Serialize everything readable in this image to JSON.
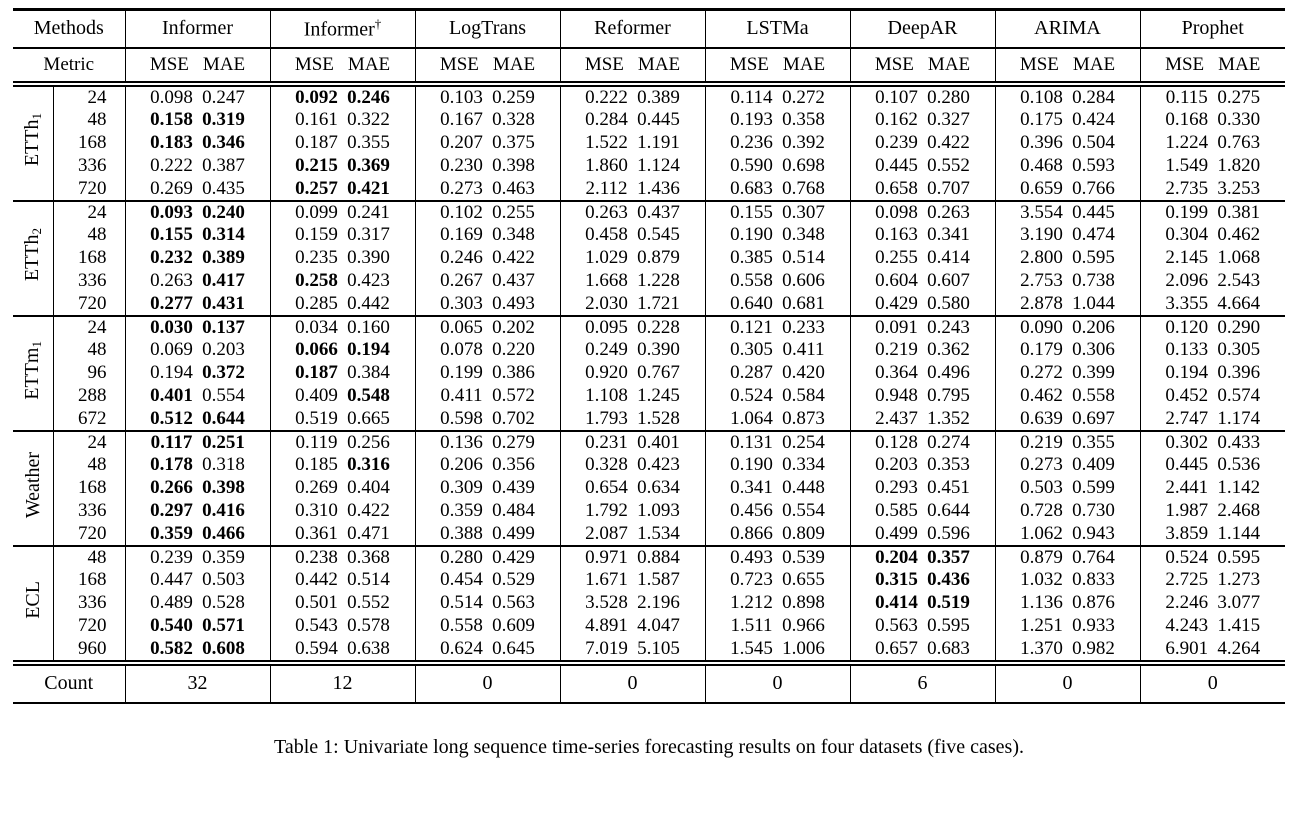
{
  "caption": "Table 1: Univariate long sequence time-series forecasting results on four datasets (five cases).",
  "table": {
    "corner_labels": {
      "methods": "Methods",
      "metric": "Metric",
      "count": "Count"
    },
    "metrics": [
      "MSE",
      "MAE"
    ],
    "methods": [
      {
        "name": "Informer",
        "sup": ""
      },
      {
        "name": "Informer",
        "sup": "†"
      },
      {
        "name": "LogTrans",
        "sup": ""
      },
      {
        "name": "Reformer",
        "sup": ""
      },
      {
        "name": "LSTMa",
        "sup": ""
      },
      {
        "name": "DeepAR",
        "sup": ""
      },
      {
        "name": "ARIMA",
        "sup": ""
      },
      {
        "name": "Prophet",
        "sup": ""
      }
    ],
    "counts": [
      "32",
      "12",
      "0",
      "0",
      "0",
      "6",
      "0",
      "0"
    ],
    "groups": [
      {
        "label": "ETTh",
        "label_sub": "1",
        "rows": [
          {
            "horizon": "24",
            "values": [
              "0.098",
              "0.247",
              "0.092",
              "0.246",
              "0.103",
              "0.259",
              "0.222",
              "0.389",
              "0.114",
              "0.272",
              "0.107",
              "0.280",
              "0.108",
              "0.284",
              "0.115",
              "0.275"
            ],
            "bold": [
              2,
              3
            ]
          },
          {
            "horizon": "48",
            "values": [
              "0.158",
              "0.319",
              "0.161",
              "0.322",
              "0.167",
              "0.328",
              "0.284",
              "0.445",
              "0.193",
              "0.358",
              "0.162",
              "0.327",
              "0.175",
              "0.424",
              "0.168",
              "0.330"
            ],
            "bold": [
              0,
              1
            ]
          },
          {
            "horizon": "168",
            "values": [
              "0.183",
              "0.346",
              "0.187",
              "0.355",
              "0.207",
              "0.375",
              "1.522",
              "1.191",
              "0.236",
              "0.392",
              "0.239",
              "0.422",
              "0.396",
              "0.504",
              "1.224",
              "0.763"
            ],
            "bold": [
              0,
              1
            ]
          },
          {
            "horizon": "336",
            "values": [
              "0.222",
              "0.387",
              "0.215",
              "0.369",
              "0.230",
              "0.398",
              "1.860",
              "1.124",
              "0.590",
              "0.698",
              "0.445",
              "0.552",
              "0.468",
              "0.593",
              "1.549",
              "1.820"
            ],
            "bold": [
              2,
              3
            ]
          },
          {
            "horizon": "720",
            "values": [
              "0.269",
              "0.435",
              "0.257",
              "0.421",
              "0.273",
              "0.463",
              "2.112",
              "1.436",
              "0.683",
              "0.768",
              "0.658",
              "0.707",
              "0.659",
              "0.766",
              "2.735",
              "3.253"
            ],
            "bold": [
              2,
              3
            ]
          }
        ]
      },
      {
        "label": "ETTh",
        "label_sub": "2",
        "rows": [
          {
            "horizon": "24",
            "values": [
              "0.093",
              "0.240",
              "0.099",
              "0.241",
              "0.102",
              "0.255",
              "0.263",
              "0.437",
              "0.155",
              "0.307",
              "0.098",
              "0.263",
              "3.554",
              "0.445",
              "0.199",
              "0.381"
            ],
            "bold": [
              0,
              1
            ]
          },
          {
            "horizon": "48",
            "values": [
              "0.155",
              "0.314",
              "0.159",
              "0.317",
              "0.169",
              "0.348",
              "0.458",
              "0.545",
              "0.190",
              "0.348",
              "0.163",
              "0.341",
              "3.190",
              "0.474",
              "0.304",
              "0.462"
            ],
            "bold": [
              0,
              1
            ]
          },
          {
            "horizon": "168",
            "values": [
              "0.232",
              "0.389",
              "0.235",
              "0.390",
              "0.246",
              "0.422",
              "1.029",
              "0.879",
              "0.385",
              "0.514",
              "0.255",
              "0.414",
              "2.800",
              "0.595",
              "2.145",
              "1.068"
            ],
            "bold": [
              0,
              1
            ]
          },
          {
            "horizon": "336",
            "values": [
              "0.263",
              "0.417",
              "0.258",
              "0.423",
              "0.267",
              "0.437",
              "1.668",
              "1.228",
              "0.558",
              "0.606",
              "0.604",
              "0.607",
              "2.753",
              "0.738",
              "2.096",
              "2.543"
            ],
            "bold": [
              1,
              2
            ]
          },
          {
            "horizon": "720",
            "values": [
              "0.277",
              "0.431",
              "0.285",
              "0.442",
              "0.303",
              "0.493",
              "2.030",
              "1.721",
              "0.640",
              "0.681",
              "0.429",
              "0.580",
              "2.878",
              "1.044",
              "3.355",
              "4.664"
            ],
            "bold": [
              0,
              1
            ]
          }
        ]
      },
      {
        "label": "ETTm",
        "label_sub": "1",
        "rows": [
          {
            "horizon": "24",
            "values": [
              "0.030",
              "0.137",
              "0.034",
              "0.160",
              "0.065",
              "0.202",
              "0.095",
              "0.228",
              "0.121",
              "0.233",
              "0.091",
              "0.243",
              "0.090",
              "0.206",
              "0.120",
              "0.290"
            ],
            "bold": [
              0,
              1
            ]
          },
          {
            "horizon": "48",
            "values": [
              "0.069",
              "0.203",
              "0.066",
              "0.194",
              "0.078",
              "0.220",
              "0.249",
              "0.390",
              "0.305",
              "0.411",
              "0.219",
              "0.362",
              "0.179",
              "0.306",
              "0.133",
              "0.305"
            ],
            "bold": [
              2,
              3
            ]
          },
          {
            "horizon": "96",
            "values": [
              "0.194",
              "0.372",
              "0.187",
              "0.384",
              "0.199",
              "0.386",
              "0.920",
              "0.767",
              "0.287",
              "0.420",
              "0.364",
              "0.496",
              "0.272",
              "0.399",
              "0.194",
              "0.396"
            ],
            "bold": [
              1,
              2
            ]
          },
          {
            "horizon": "288",
            "values": [
              "0.401",
              "0.554",
              "0.409",
              "0.548",
              "0.411",
              "0.572",
              "1.108",
              "1.245",
              "0.524",
              "0.584",
              "0.948",
              "0.795",
              "0.462",
              "0.558",
              "0.452",
              "0.574"
            ],
            "bold": [
              0,
              3
            ]
          },
          {
            "horizon": "672",
            "values": [
              "0.512",
              "0.644",
              "0.519",
              "0.665",
              "0.598",
              "0.702",
              "1.793",
              "1.528",
              "1.064",
              "0.873",
              "2.437",
              "1.352",
              "0.639",
              "0.697",
              "2.747",
              "1.174"
            ],
            "bold": [
              0,
              1
            ]
          }
        ]
      },
      {
        "label": "Weather",
        "label_sub": "",
        "rows": [
          {
            "horizon": "24",
            "values": [
              "0.117",
              "0.251",
              "0.119",
              "0.256",
              "0.136",
              "0.279",
              "0.231",
              "0.401",
              "0.131",
              "0.254",
              "0.128",
              "0.274",
              "0.219",
              "0.355",
              "0.302",
              "0.433"
            ],
            "bold": [
              0,
              1
            ]
          },
          {
            "horizon": "48",
            "values": [
              "0.178",
              "0.318",
              "0.185",
              "0.316",
              "0.206",
              "0.356",
              "0.328",
              "0.423",
              "0.190",
              "0.334",
              "0.203",
              "0.353",
              "0.273",
              "0.409",
              "0.445",
              "0.536"
            ],
            "bold": [
              0,
              3
            ]
          },
          {
            "horizon": "168",
            "values": [
              "0.266",
              "0.398",
              "0.269",
              "0.404",
              "0.309",
              "0.439",
              "0.654",
              "0.634",
              "0.341",
              "0.448",
              "0.293",
              "0.451",
              "0.503",
              "0.599",
              "2.441",
              "1.142"
            ],
            "bold": [
              0,
              1
            ]
          },
          {
            "horizon": "336",
            "values": [
              "0.297",
              "0.416",
              "0.310",
              "0.422",
              "0.359",
              "0.484",
              "1.792",
              "1.093",
              "0.456",
              "0.554",
              "0.585",
              "0.644",
              "0.728",
              "0.730",
              "1.987",
              "2.468"
            ],
            "bold": [
              0,
              1
            ]
          },
          {
            "horizon": "720",
            "values": [
              "0.359",
              "0.466",
              "0.361",
              "0.471",
              "0.388",
              "0.499",
              "2.087",
              "1.534",
              "0.866",
              "0.809",
              "0.499",
              "0.596",
              "1.062",
              "0.943",
              "3.859",
              "1.144"
            ],
            "bold": [
              0,
              1
            ]
          }
        ]
      },
      {
        "label": "ECL",
        "label_sub": "",
        "rows": [
          {
            "horizon": "48",
            "values": [
              "0.239",
              "0.359",
              "0.238",
              "0.368",
              "0.280",
              "0.429",
              "0.971",
              "0.884",
              "0.493",
              "0.539",
              "0.204",
              "0.357",
              "0.879",
              "0.764",
              "0.524",
              "0.595"
            ],
            "bold": [
              10,
              11
            ]
          },
          {
            "horizon": "168",
            "values": [
              "0.447",
              "0.503",
              "0.442",
              "0.514",
              "0.454",
              "0.529",
              "1.671",
              "1.587",
              "0.723",
              "0.655",
              "0.315",
              "0.436",
              "1.032",
              "0.833",
              "2.725",
              "1.273"
            ],
            "bold": [
              10,
              11
            ]
          },
          {
            "horizon": "336",
            "values": [
              "0.489",
              "0.528",
              "0.501",
              "0.552",
              "0.514",
              "0.563",
              "3.528",
              "2.196",
              "1.212",
              "0.898",
              "0.414",
              "0.519",
              "1.136",
              "0.876",
              "2.246",
              "3.077"
            ],
            "bold": [
              10,
              11
            ]
          },
          {
            "horizon": "720",
            "values": [
              "0.540",
              "0.571",
              "0.543",
              "0.578",
              "0.558",
              "0.609",
              "4.891",
              "4.047",
              "1.511",
              "0.966",
              "0.563",
              "0.595",
              "1.251",
              "0.933",
              "4.243",
              "1.415"
            ],
            "bold": [
              0,
              1
            ]
          },
          {
            "horizon": "960",
            "values": [
              "0.582",
              "0.608",
              "0.594",
              "0.638",
              "0.624",
              "0.645",
              "7.019",
              "5.105",
              "1.545",
              "1.006",
              "0.657",
              "0.683",
              "1.370",
              "0.982",
              "6.901",
              "4.264"
            ],
            "bold": [
              0,
              1
            ]
          }
        ]
      }
    ]
  }
}
